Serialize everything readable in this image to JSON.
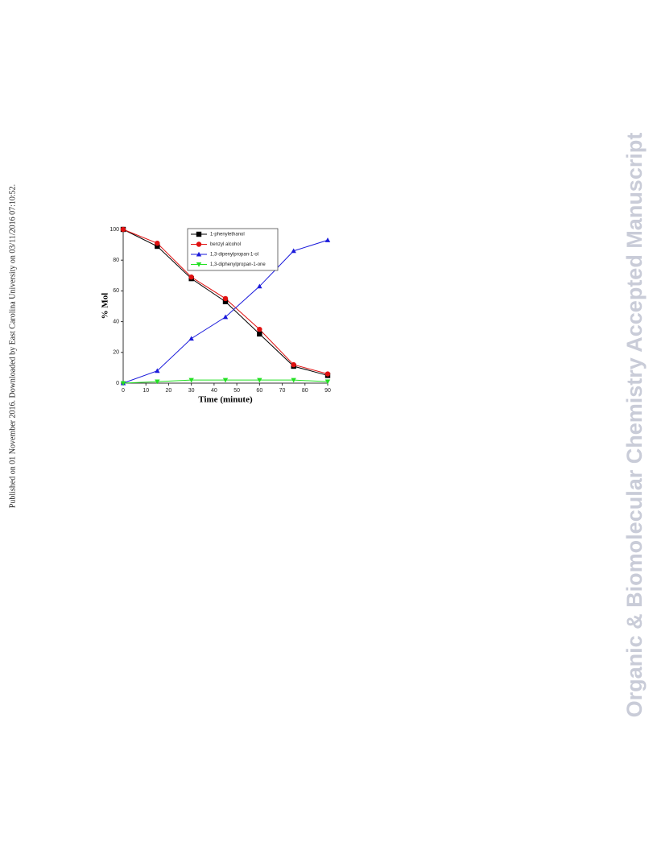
{
  "side_text": "Published on 01 November 2016. Downloaded by East Carolina University on 03/11/2016 07:10:52.",
  "watermark": "Organic & Biomolecular Chemistry Accepted Manuscript",
  "chart_data": {
    "type": "line",
    "xlabel": "Time (minute)",
    "ylabel": "% Mol",
    "x": [
      0,
      15,
      30,
      45,
      60,
      75,
      90
    ],
    "xlim": [
      0,
      90
    ],
    "xticks": [
      0,
      10,
      20,
      30,
      40,
      50,
      60,
      70,
      80,
      90
    ],
    "ylim": [
      0,
      100
    ],
    "yticks": [
      0,
      20,
      40,
      60,
      80,
      100
    ],
    "legend": "top",
    "series": [
      {
        "name": "1-phenylethanol",
        "color": "#000000",
        "marker": "square",
        "values": [
          100,
          89,
          68,
          53,
          32,
          11,
          5
        ]
      },
      {
        "name": "benzyl alcohol",
        "color": "#e01010",
        "marker": "circle",
        "values": [
          100,
          91,
          69,
          55,
          35,
          12,
          6
        ]
      },
      {
        "name": "1,3-dipenylpropan-1-ol",
        "color": "#1a1adb",
        "marker": "triangle",
        "values": [
          0,
          8,
          29,
          43,
          63,
          86,
          93
        ]
      },
      {
        "name": "1,3-diphenylpropan-1-one",
        "color": "#22e022",
        "marker": "triangle-down",
        "values": [
          0,
          1,
          2,
          2,
          2,
          2,
          1
        ]
      }
    ]
  }
}
